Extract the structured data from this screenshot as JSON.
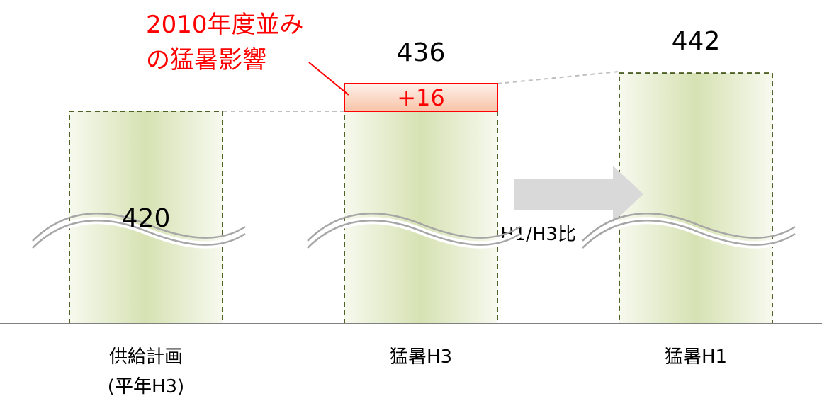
{
  "chart_data": {
    "type": "bar",
    "categories": [
      "供給計画",
      "猛暑H3",
      "猛暑H1"
    ],
    "category_sublabels": [
      "(平年H3)",
      "",
      ""
    ],
    "values": [
      420,
      436,
      442
    ],
    "value_labels": [
      "420",
      "436",
      "442"
    ],
    "axis_break": true,
    "bar_fill": [
      "#f7f9ee",
      "#d6e2b3"
    ],
    "bar_border": "#4f6228",
    "increment": {
      "category": "猛暑H3",
      "value": 16,
      "label": "+16",
      "fill": [
        "#fef1ea",
        "#f8c4a8"
      ],
      "border": "#ff0000",
      "annotation": [
        "2010年度並み",
        "の猛暑影響"
      ]
    },
    "comparison_arrow": {
      "from": "猛暑H3",
      "to": "猛暑H1",
      "label": "H1/H3比",
      "color": "#d9d9d9"
    },
    "annotation_color": "#ff0000"
  }
}
